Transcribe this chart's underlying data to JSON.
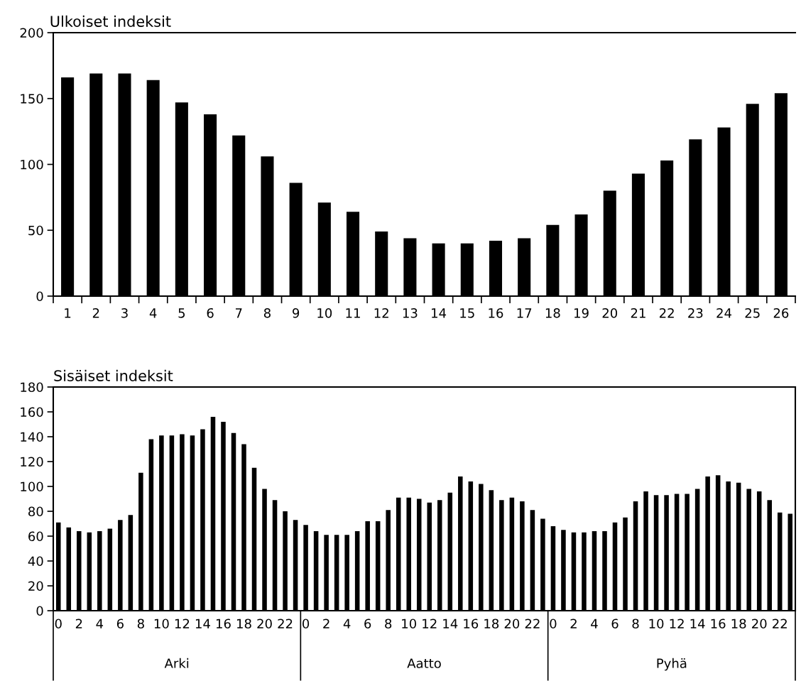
{
  "chart_data": [
    {
      "type": "bar",
      "title": "Ulkoiset indeksit",
      "categories": [
        "1",
        "2",
        "3",
        "4",
        "5",
        "6",
        "7",
        "8",
        "9",
        "10",
        "11",
        "12",
        "13",
        "14",
        "15",
        "16",
        "17",
        "18",
        "19",
        "20",
        "21",
        "22",
        "23",
        "24",
        "25",
        "26"
      ],
      "values": [
        166,
        169,
        169,
        164,
        147,
        138,
        122,
        106,
        86,
        71,
        64,
        49,
        44,
        40,
        40,
        42,
        44,
        54,
        62,
        80,
        93,
        103,
        119,
        128,
        146,
        154
      ],
      "color": "#000000",
      "ylim": [
        0,
        200
      ],
      "yticks": [
        0,
        50,
        100,
        150,
        200
      ],
      "grid": false,
      "legend": false
    },
    {
      "type": "bar",
      "title": "Sisäiset indeksit",
      "categories": [
        "0",
        null,
        "2",
        null,
        "4",
        null,
        "6",
        null,
        "8",
        null,
        "10",
        null,
        "12",
        null,
        "14",
        null,
        "16",
        null,
        "18",
        null,
        "20",
        null,
        "22",
        null,
        "0",
        null,
        "2",
        null,
        "4",
        null,
        "6",
        null,
        "8",
        null,
        "10",
        null,
        "12",
        null,
        "14",
        null,
        "16",
        null,
        "18",
        null,
        "20",
        null,
        "22",
        null,
        "0",
        null,
        "2",
        null,
        "4",
        null,
        "6",
        null,
        "8",
        null,
        "10",
        null,
        "12",
        null,
        "14",
        null,
        "16",
        null,
        "18",
        null,
        "20",
        null,
        "22",
        null
      ],
      "values": [
        71,
        67,
        64,
        63,
        64,
        66,
        73,
        77,
        111,
        138,
        141,
        141,
        142,
        141,
        146,
        156,
        152,
        143,
        134,
        115,
        98,
        89,
        80,
        73,
        69,
        64,
        61,
        61,
        61,
        64,
        72,
        72,
        81,
        91,
        91,
        90,
        87,
        89,
        95,
        108,
        104,
        102,
        97,
        89,
        91,
        88,
        81,
        74,
        68,
        65,
        63,
        63,
        64,
        64,
        71,
        75,
        88,
        96,
        93,
        93,
        94,
        94,
        98,
        108,
        109,
        104,
        103,
        98,
        96,
        89,
        79,
        78
      ],
      "color": "#000000",
      "ylim": [
        0,
        180
      ],
      "yticks": [
        0,
        20,
        40,
        60,
        80,
        100,
        120,
        140,
        160,
        180
      ],
      "grid": false,
      "legend": false,
      "annotations": [
        "Arki",
        "Aatto",
        "Pyhä"
      ]
    }
  ]
}
